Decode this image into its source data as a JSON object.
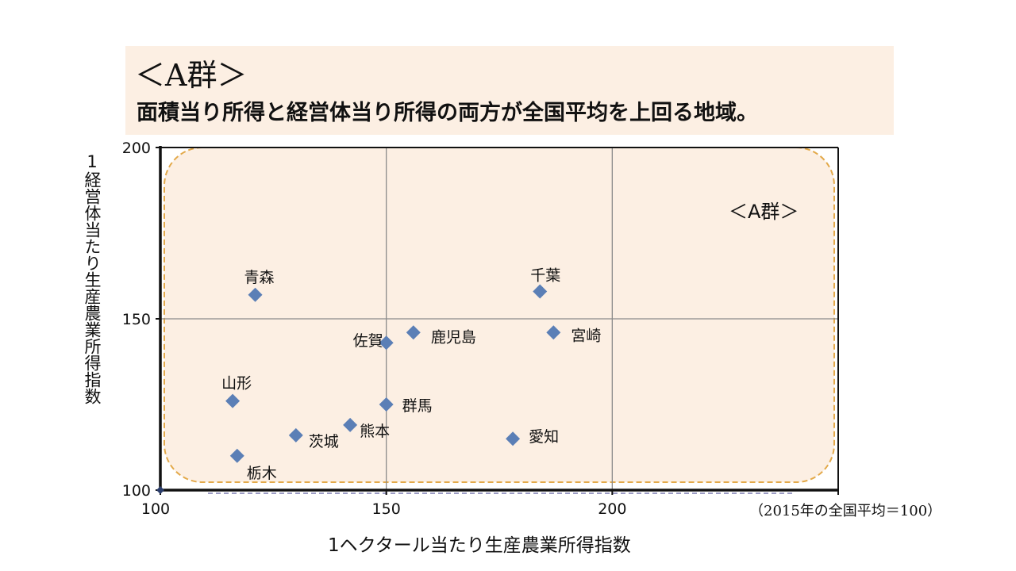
{
  "header": {
    "title": "＜A群＞",
    "subtitle": "面積当り所得と経営体当り所得の両方が全国平均を上回る地域。"
  },
  "chart_data": {
    "type": "scatter",
    "xlabel": "1ヘクタール当たり生産農業所得指数",
    "ylabel": "1経営体当たり生産農業所得指数",
    "xlim": [
      100,
      250
    ],
    "ylim": [
      100,
      200
    ],
    "x_ticks": [
      "100",
      "150",
      "200"
    ],
    "y_ticks": [
      "100",
      "150",
      "200"
    ],
    "grid": true,
    "region_label": "＜A群＞",
    "note": "（2015年の全国平均＝100）",
    "marker_color": "#5b7fb6",
    "region_fill": "#fcefe3",
    "region_border": "#e3a94a",
    "points": [
      {
        "name": "青森",
        "x": 121,
        "y": 157
      },
      {
        "name": "千葉",
        "x": 184,
        "y": 158
      },
      {
        "name": "宮崎",
        "x": 187,
        "y": 146
      },
      {
        "name": "鹿児島",
        "x": 156,
        "y": 146
      },
      {
        "name": "佐賀",
        "x": 150,
        "y": 143
      },
      {
        "name": "山形",
        "x": 116,
        "y": 126
      },
      {
        "name": "群馬",
        "x": 150,
        "y": 125
      },
      {
        "name": "熊本",
        "x": 142,
        "y": 119
      },
      {
        "name": "茨城",
        "x": 130,
        "y": 116
      },
      {
        "name": "愛知",
        "x": 178,
        "y": 115
      },
      {
        "name": "栃木",
        "x": 117,
        "y": 110
      }
    ]
  }
}
